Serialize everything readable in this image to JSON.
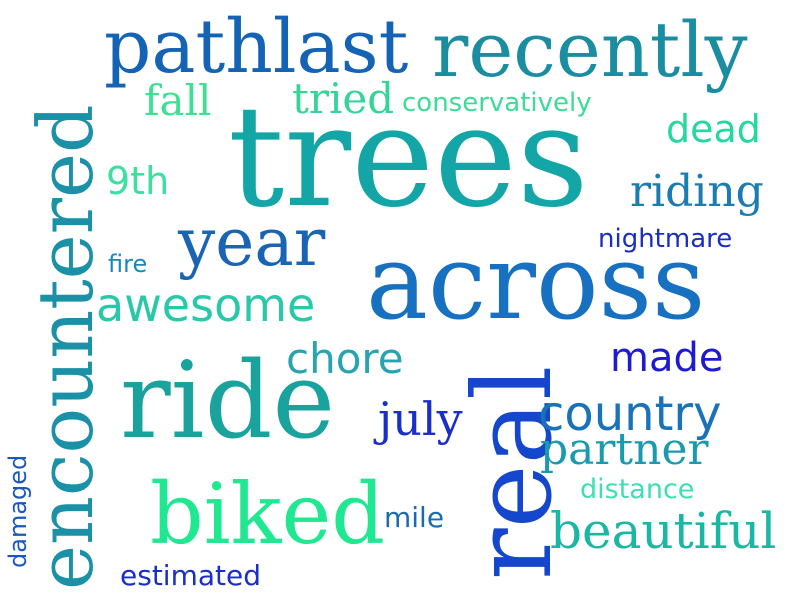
{
  "words": [
    {
      "key": "trees",
      "text": "trees",
      "color": "#14a6a6"
    },
    {
      "key": "across",
      "text": "across",
      "color": "#1870c0"
    },
    {
      "key": "ride",
      "text": "ride",
      "color": "#1aa39c"
    },
    {
      "key": "encountered",
      "text": "encountered",
      "color": "#1a91a6"
    },
    {
      "key": "real",
      "text": "real",
      "color": "#1447cc"
    },
    {
      "key": "pathlast",
      "text": "pathlast",
      "color": "#1463b4"
    },
    {
      "key": "recently",
      "text": "recently",
      "color": "#1a8ea0"
    },
    {
      "key": "biked",
      "text": "biked",
      "color": "#20e890"
    },
    {
      "key": "year",
      "text": "year",
      "color": "#1a64b4"
    },
    {
      "key": "awesome",
      "text": "awesome",
      "color": "#28c8a8"
    },
    {
      "key": "country",
      "text": "country",
      "color": "#1a72b8"
    },
    {
      "key": "beautiful",
      "text": "beautiful",
      "color": "#1ab8a4"
    },
    {
      "key": "partner",
      "text": "partner",
      "color": "#1a9ab0"
    },
    {
      "key": "riding",
      "text": "riding",
      "color": "#1a7cb0"
    },
    {
      "key": "chore",
      "text": "chore",
      "color": "#26a4b0"
    },
    {
      "key": "made",
      "text": "made",
      "color": "#1e1ad0"
    },
    {
      "key": "july",
      "text": "july",
      "color": "#1a2ec8"
    },
    {
      "key": "dead",
      "text": "dead",
      "color": "#26d8a0"
    },
    {
      "key": "fall",
      "text": "fall",
      "color": "#40e094"
    },
    {
      "key": "tried",
      "text": "tried",
      "color": "#36d498"
    },
    {
      "key": "conservatively",
      "text": "conservatively",
      "color": "#3cdc98"
    },
    {
      "key": "9th",
      "text": "9th",
      "color": "#3ce0a0"
    },
    {
      "key": "nightmare",
      "text": "nightmare",
      "color": "#1a2ec0"
    },
    {
      "key": "fire",
      "text": "fire",
      "color": "#1a88b8"
    },
    {
      "key": "distance",
      "text": "distance",
      "color": "#3ce0b4"
    },
    {
      "key": "mile",
      "text": "mile",
      "color": "#1a6cb0"
    },
    {
      "key": "estimated",
      "text": "estimated",
      "color": "#1a2ec8"
    },
    {
      "key": "damaged",
      "text": "damaged",
      "color": "#1a58c0"
    }
  ]
}
